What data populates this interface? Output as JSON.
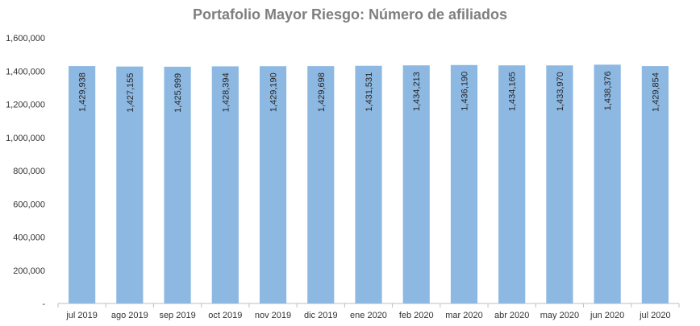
{
  "chart_data": {
    "type": "bar",
    "title": "Portafolio Mayor Riesgo: Número de afiliados",
    "xlabel": "",
    "ylabel": "",
    "categories": [
      "jul 2019",
      "ago 2019",
      "sep 2019",
      "oct 2019",
      "nov 2019",
      "dic 2019",
      "ene 2020",
      "feb 2020",
      "mar 2020",
      "abr 2020",
      "may 2020",
      "jun 2020",
      "jul 2020"
    ],
    "values": [
      1429938,
      1427155,
      1425999,
      1428394,
      1429190,
      1429698,
      1431531,
      1434213,
      1436190,
      1434165,
      1433970,
      1438376,
      1429854
    ],
    "data_labels": [
      "1,429,938",
      "1,427,155",
      "1,425,999",
      "1,428,394",
      "1,429,190",
      "1,429,698",
      "1,431,531",
      "1,434,213",
      "1,436,190",
      "1,434,165",
      "1,433,970",
      "1,438,376",
      "1,429,854"
    ],
    "ylim": [
      0,
      1600000
    ],
    "yticks": [
      0,
      200000,
      400000,
      600000,
      800000,
      1000000,
      1200000,
      1400000,
      1600000
    ],
    "ytick_labels": [
      "-",
      "200,000",
      "400,000",
      "600,000",
      "800,000",
      "1,000,000",
      "1,200,000",
      "1,400,000",
      "1,600,000"
    ],
    "grid": false,
    "legend": "none",
    "bar_color": "#8DB8E2",
    "title_color": "#7F7F7F"
  }
}
